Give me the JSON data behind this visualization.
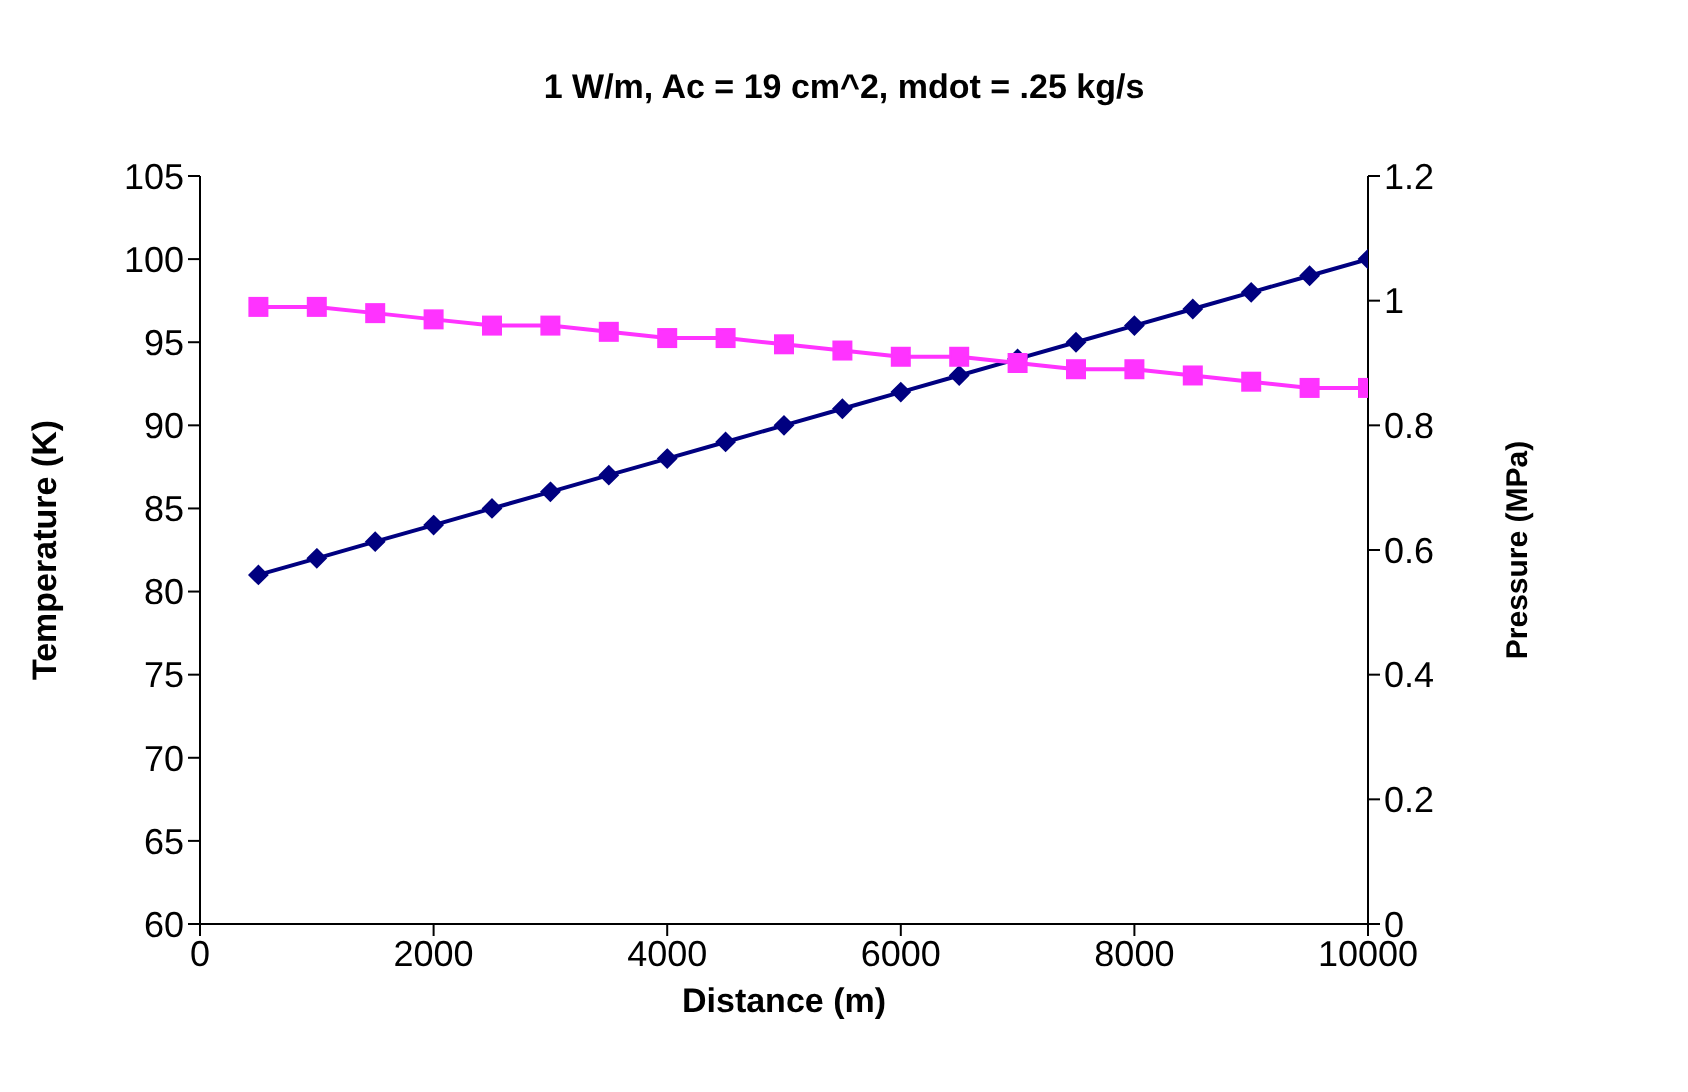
{
  "chart_data": {
    "type": "line",
    "title": "1 W/m, Ac = 19 cm^2, mdot = .25 kg/s",
    "xlabel": "Distance (m)",
    "ylabel": "Temperature (K)",
    "y2label": "Pressure (MPa)",
    "x": [
      500,
      1000,
      1500,
      2000,
      2500,
      3000,
      3500,
      4000,
      4500,
      5000,
      5500,
      6000,
      6500,
      7000,
      7500,
      8000,
      8500,
      9000,
      9500,
      10000
    ],
    "series": [
      {
        "color": "#000080",
        "marker": "diamond",
        "values": [
          81,
          82,
          83,
          84,
          85,
          86,
          87,
          88,
          89,
          90,
          91,
          92,
          93,
          94,
          95,
          96,
          97,
          98,
          99,
          100
        ]
      },
      {
        "color": "#ff33ff",
        "marker": "square",
        "axis": "y2",
        "values": [
          0.99,
          0.99,
          0.98,
          0.97,
          0.96,
          0.96,
          0.95,
          0.94,
          0.94,
          0.93,
          0.92,
          0.91,
          0.91,
          0.9,
          0.89,
          0.89,
          0.88,
          0.87,
          0.86,
          0.86
        ]
      }
    ],
    "xlim": [
      0,
      10000
    ],
    "xticks": [
      0,
      2000,
      4000,
      6000,
      8000,
      10000
    ],
    "ylim": [
      60,
      105
    ],
    "yticks": [
      60,
      65,
      70,
      75,
      80,
      85,
      90,
      95,
      100,
      105
    ],
    "y2lim": [
      0,
      1.2
    ],
    "y2ticks": [
      0,
      0.2,
      0.4,
      0.6,
      0.8,
      1,
      1.2
    ],
    "grid": false
  }
}
